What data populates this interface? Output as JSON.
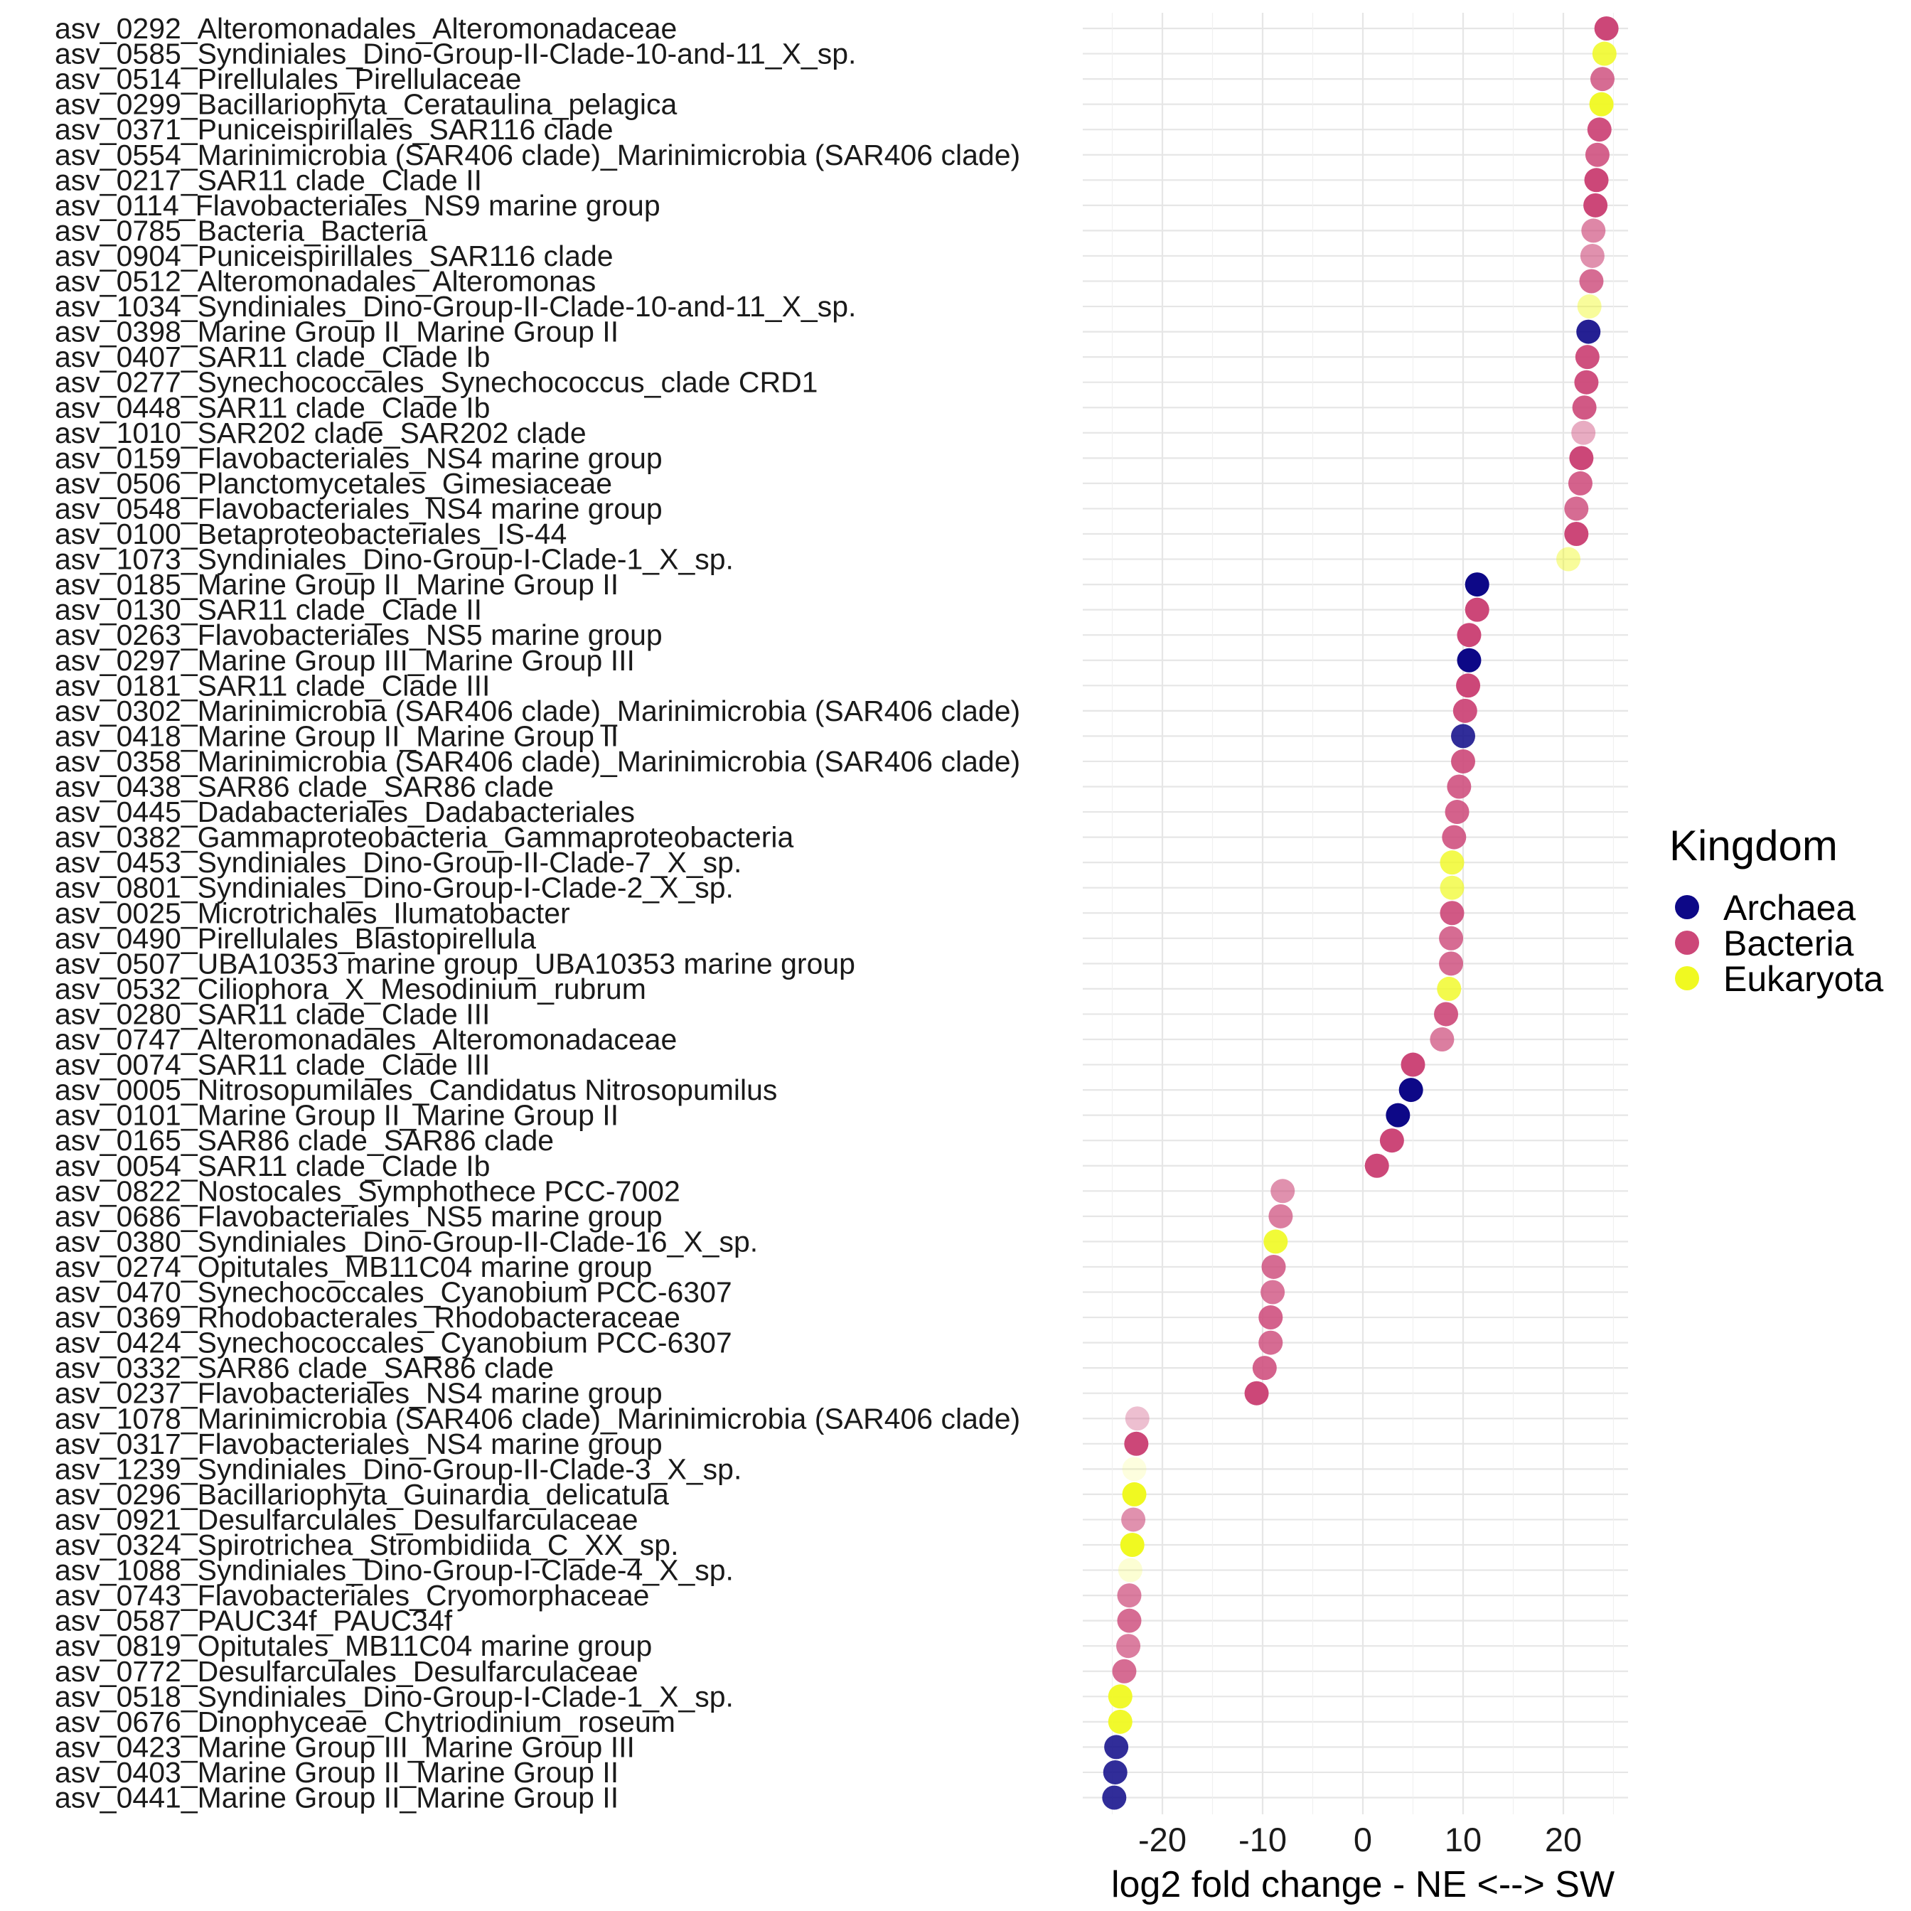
{
  "chart_data": {
    "type": "scatter",
    "title": "",
    "xlabel": "log2 fold change - NE <--> SW",
    "ylabel": "",
    "xlim": [
      -27,
      27
    ],
    "x_ticks": [
      -20,
      -10,
      0,
      10,
      20
    ],
    "x_tick_labels": [
      "-20",
      "-10",
      "0",
      "10",
      "20"
    ],
    "grid": true,
    "legend": {
      "title": "Kingdom",
      "position": "right",
      "entries": [
        {
          "name": "Archaea",
          "color": "#0d0887"
        },
        {
          "name": "Bacteria",
          "color": "#cc4778"
        },
        {
          "name": "Eukaryota",
          "color": "#f0f921"
        }
      ]
    },
    "colors": {
      "Archaea": "#0d0887",
      "Bacteria": "#cc4778",
      "Eukaryota": "#f0f921"
    },
    "categories": [
      "asv_0292_Alteromonadales_Alteromonadaceae",
      "asv_0585_Syndiniales_Dino-Group-II-Clade-10-and-11_X_sp.",
      "asv_0514_Pirellulales_Pirellulaceae",
      "asv_0299_Bacillariophyta_Cerataulina_pelagica",
      "asv_0371_Puniceispirillales_SAR116 clade",
      "asv_0554_Marinimicrobia (SAR406 clade)_Marinimicrobia (SAR406 clade)",
      "asv_0217_SAR11 clade_Clade II",
      "asv_0114_Flavobacteriales_NS9 marine group",
      "asv_0785_Bacteria_Bacteria",
      "asv_0904_Puniceispirillales_SAR116 clade",
      "asv_0512_Alteromonadales_Alteromonas",
      "asv_1034_Syndiniales_Dino-Group-II-Clade-10-and-11_X_sp.",
      "asv_0398_Marine Group II_Marine Group II",
      "asv_0407_SAR11 clade_Clade Ib",
      "asv_0277_Synechococcales_Synechococcus_clade CRD1",
      "asv_0448_SAR11 clade_Clade Ib",
      "asv_1010_SAR202 clade_SAR202 clade",
      "asv_0159_Flavobacteriales_NS4 marine group",
      "asv_0506_Planctomycetales_Gimesiaceae",
      "asv_0548_Flavobacteriales_NS4 marine group",
      "asv_0100_Betaproteobacteriales_IS-44",
      "asv_1073_Syndiniales_Dino-Group-I-Clade-1_X_sp.",
      "asv_0185_Marine Group II_Marine Group II",
      "asv_0130_SAR11 clade_Clade II",
      "asv_0263_Flavobacteriales_NS5 marine group",
      "asv_0297_Marine Group III_Marine Group III",
      "asv_0181_SAR11 clade_Clade III",
      "asv_0302_Marinimicrobia (SAR406 clade)_Marinimicrobia (SAR406 clade)",
      "asv_0418_Marine Group II_Marine Group II",
      "asv_0358_Marinimicrobia (SAR406 clade)_Marinimicrobia (SAR406 clade)",
      "asv_0438_SAR86 clade_SAR86 clade",
      "asv_0445_Dadabacteriales_Dadabacteriales",
      "asv_0382_Gammaproteobacteria_Gammaproteobacteria",
      "asv_0453_Syndiniales_Dino-Group-II-Clade-7_X_sp.",
      "asv_0801_Syndiniales_Dino-Group-I-Clade-2_X_sp.",
      "asv_0025_Microtrichales_Ilumatobacter",
      "asv_0490_Pirellulales_Blastopirellula",
      "asv_0507_UBA10353 marine group_UBA10353 marine group",
      "asv_0532_Ciliophora_X_Mesodinium_rubrum",
      "asv_0280_SAR11 clade_Clade III",
      "asv_0747_Alteromonadales_Alteromonadaceae",
      "asv_0074_SAR11 clade_Clade III",
      "asv_0005_Nitrosopumilales_Candidatus Nitrosopumilus",
      "asv_0101_Marine Group II_Marine Group II",
      "asv_0165_SAR86 clade_SAR86 clade",
      "asv_0054_SAR11 clade_Clade Ib",
      "asv_0822_Nostocales_Symphothece PCC-7002",
      "asv_0686_Flavobacteriales_NS5 marine group",
      "asv_0380_Syndiniales_Dino-Group-II-Clade-16_X_sp.",
      "asv_0274_Opitutales_MB11C04 marine group",
      "asv_0470_Synechococcales_Cyanobium PCC-6307",
      "asv_0369_Rhodobacterales_Rhodobacteraceae",
      "asv_0424_Synechococcales_Cyanobium PCC-6307",
      "asv_0332_SAR86 clade_SAR86 clade",
      "asv_0237_Flavobacteriales_NS4 marine group",
      "asv_1078_Marinimicrobia (SAR406 clade)_Marinimicrobia (SAR406 clade)",
      "asv_0317_Flavobacteriales_NS4 marine group",
      "asv_1239_Syndiniales_Dino-Group-II-Clade-3_X_sp.",
      "asv_0296_Bacillariophyta_Guinardia_delicatula",
      "asv_0921_Desulfarculales_Desulfarculaceae",
      "asv_0324_Spirotrichea_Strombidiida_C_XX_sp.",
      "asv_1088_Syndiniales_Dino-Group-I-Clade-4_X_sp.",
      "asv_0743_Flavobacteriales_Cryomorphaceae",
      "asv_0587_PAUC34f_PAUC34f",
      "asv_0819_Opitutales_MB11C04 marine group",
      "asv_0772_Desulfarculales_Desulfarculaceae",
      "asv_0518_Syndiniales_Dino-Group-I-Clade-1_X_sp.",
      "asv_0676_Dinophyceae_Chytriodinium_roseum",
      "asv_0423_Marine Group III_Marine Group III",
      "asv_0403_Marine Group II_Marine Group II",
      "asv_0441_Marine Group II_Marine Group II"
    ],
    "points": [
      {
        "x": 24.3,
        "kingdom": "Bacteria",
        "alpha": 1.0
      },
      {
        "x": 24.1,
        "kingdom": "Eukaryota",
        "alpha": 0.85
      },
      {
        "x": 23.9,
        "kingdom": "Bacteria",
        "alpha": 0.8
      },
      {
        "x": 23.8,
        "kingdom": "Eukaryota",
        "alpha": 0.95
      },
      {
        "x": 23.6,
        "kingdom": "Bacteria",
        "alpha": 0.95
      },
      {
        "x": 23.4,
        "kingdom": "Bacteria",
        "alpha": 0.85
      },
      {
        "x": 23.3,
        "kingdom": "Bacteria",
        "alpha": 1.0
      },
      {
        "x": 23.2,
        "kingdom": "Bacteria",
        "alpha": 1.0
      },
      {
        "x": 23.0,
        "kingdom": "Bacteria",
        "alpha": 0.65
      },
      {
        "x": 22.9,
        "kingdom": "Bacteria",
        "alpha": 0.6
      },
      {
        "x": 22.8,
        "kingdom": "Bacteria",
        "alpha": 0.8
      },
      {
        "x": 22.6,
        "kingdom": "Eukaryota",
        "alpha": 0.45
      },
      {
        "x": 22.5,
        "kingdom": "Archaea",
        "alpha": 0.9
      },
      {
        "x": 22.4,
        "kingdom": "Bacteria",
        "alpha": 0.95
      },
      {
        "x": 22.3,
        "kingdom": "Bacteria",
        "alpha": 0.95
      },
      {
        "x": 22.1,
        "kingdom": "Bacteria",
        "alpha": 0.9
      },
      {
        "x": 22.0,
        "kingdom": "Bacteria",
        "alpha": 0.45
      },
      {
        "x": 21.8,
        "kingdom": "Bacteria",
        "alpha": 1.0
      },
      {
        "x": 21.7,
        "kingdom": "Bacteria",
        "alpha": 0.85
      },
      {
        "x": 21.3,
        "kingdom": "Bacteria",
        "alpha": 0.8
      },
      {
        "x": 21.3,
        "kingdom": "Bacteria",
        "alpha": 1.0
      },
      {
        "x": 20.5,
        "kingdom": "Eukaryota",
        "alpha": 0.45
      },
      {
        "x": 11.4,
        "kingdom": "Archaea",
        "alpha": 1.0
      },
      {
        "x": 11.4,
        "kingdom": "Bacteria",
        "alpha": 1.0
      },
      {
        "x": 10.6,
        "kingdom": "Bacteria",
        "alpha": 1.0
      },
      {
        "x": 10.6,
        "kingdom": "Archaea",
        "alpha": 1.0
      },
      {
        "x": 10.5,
        "kingdom": "Bacteria",
        "alpha": 1.0
      },
      {
        "x": 10.2,
        "kingdom": "Bacteria",
        "alpha": 0.95
      },
      {
        "x": 10.0,
        "kingdom": "Archaea",
        "alpha": 0.85
      },
      {
        "x": 10.0,
        "kingdom": "Bacteria",
        "alpha": 0.9
      },
      {
        "x": 9.6,
        "kingdom": "Bacteria",
        "alpha": 0.85
      },
      {
        "x": 9.4,
        "kingdom": "Bacteria",
        "alpha": 0.85
      },
      {
        "x": 9.1,
        "kingdom": "Bacteria",
        "alpha": 0.85
      },
      {
        "x": 8.9,
        "kingdom": "Eukaryota",
        "alpha": 0.8
      },
      {
        "x": 8.9,
        "kingdom": "Eukaryota",
        "alpha": 0.7
      },
      {
        "x": 8.9,
        "kingdom": "Bacteria",
        "alpha": 0.9
      },
      {
        "x": 8.8,
        "kingdom": "Bacteria",
        "alpha": 0.8
      },
      {
        "x": 8.8,
        "kingdom": "Bacteria",
        "alpha": 0.8
      },
      {
        "x": 8.6,
        "kingdom": "Eukaryota",
        "alpha": 0.8
      },
      {
        "x": 8.3,
        "kingdom": "Bacteria",
        "alpha": 0.9
      },
      {
        "x": 7.9,
        "kingdom": "Bacteria",
        "alpha": 0.7
      },
      {
        "x": 5.0,
        "kingdom": "Bacteria",
        "alpha": 1.0
      },
      {
        "x": 4.8,
        "kingdom": "Archaea",
        "alpha": 1.0
      },
      {
        "x": 3.5,
        "kingdom": "Archaea",
        "alpha": 1.0
      },
      {
        "x": 2.9,
        "kingdom": "Bacteria",
        "alpha": 1.0
      },
      {
        "x": 1.4,
        "kingdom": "Bacteria",
        "alpha": 1.0
      },
      {
        "x": -8.0,
        "kingdom": "Bacteria",
        "alpha": 0.6
      },
      {
        "x": -8.2,
        "kingdom": "Bacteria",
        "alpha": 0.7
      },
      {
        "x": -8.7,
        "kingdom": "Eukaryota",
        "alpha": 0.9
      },
      {
        "x": -8.9,
        "kingdom": "Bacteria",
        "alpha": 0.8
      },
      {
        "x": -9.0,
        "kingdom": "Bacteria",
        "alpha": 0.75
      },
      {
        "x": -9.2,
        "kingdom": "Bacteria",
        "alpha": 0.85
      },
      {
        "x": -9.2,
        "kingdom": "Bacteria",
        "alpha": 0.8
      },
      {
        "x": -9.8,
        "kingdom": "Bacteria",
        "alpha": 0.85
      },
      {
        "x": -10.6,
        "kingdom": "Bacteria",
        "alpha": 1.0
      },
      {
        "x": -22.5,
        "kingdom": "Bacteria",
        "alpha": 0.35
      },
      {
        "x": -22.6,
        "kingdom": "Bacteria",
        "alpha": 1.0
      },
      {
        "x": -22.8,
        "kingdom": "Eukaryota",
        "alpha": 0.15
      },
      {
        "x": -22.8,
        "kingdom": "Eukaryota",
        "alpha": 1.0
      },
      {
        "x": -22.9,
        "kingdom": "Bacteria",
        "alpha": 0.6
      },
      {
        "x": -23.0,
        "kingdom": "Eukaryota",
        "alpha": 1.0
      },
      {
        "x": -23.2,
        "kingdom": "Eukaryota",
        "alpha": 0.2
      },
      {
        "x": -23.3,
        "kingdom": "Bacteria",
        "alpha": 0.7
      },
      {
        "x": -23.3,
        "kingdom": "Bacteria",
        "alpha": 0.8
      },
      {
        "x": -23.4,
        "kingdom": "Bacteria",
        "alpha": 0.7
      },
      {
        "x": -23.8,
        "kingdom": "Bacteria",
        "alpha": 0.8
      },
      {
        "x": -24.2,
        "kingdom": "Eukaryota",
        "alpha": 0.95
      },
      {
        "x": -24.2,
        "kingdom": "Eukaryota",
        "alpha": 0.95
      },
      {
        "x": -24.6,
        "kingdom": "Archaea",
        "alpha": 0.85
      },
      {
        "x": -24.7,
        "kingdom": "Archaea",
        "alpha": 0.85
      },
      {
        "x": -24.8,
        "kingdom": "Archaea",
        "alpha": 0.85
      }
    ]
  }
}
